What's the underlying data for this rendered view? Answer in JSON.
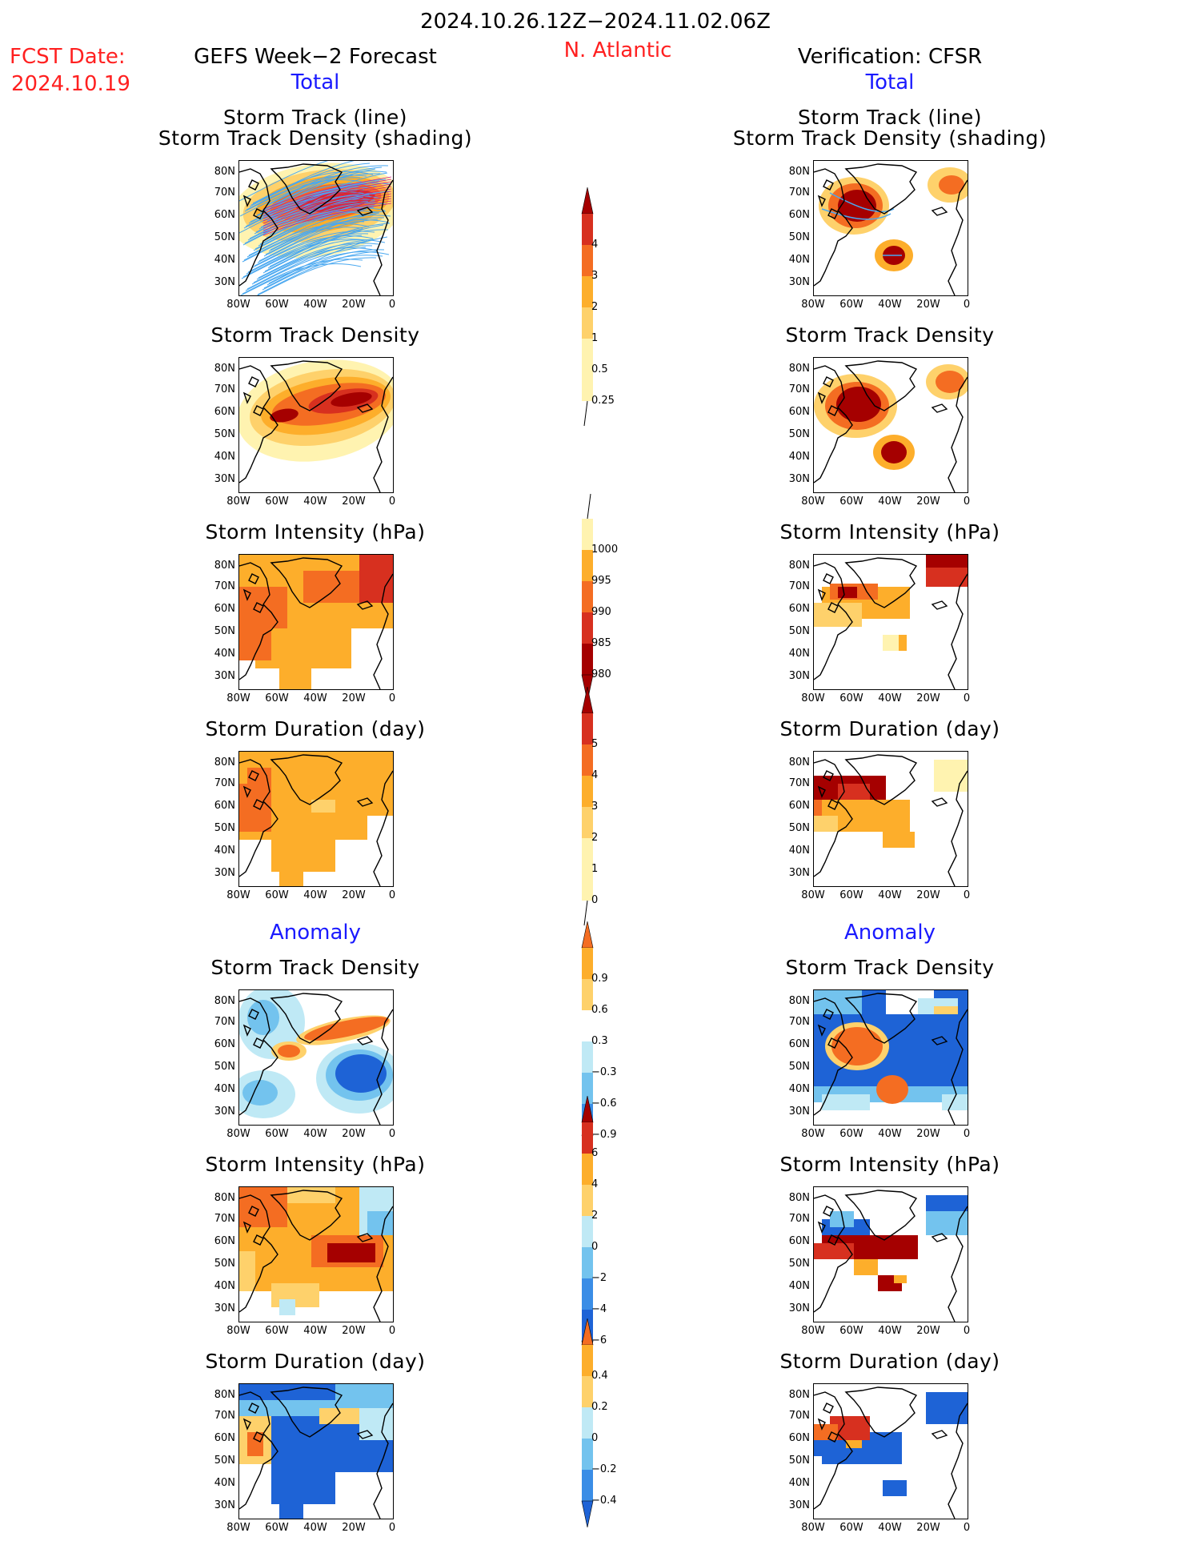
{
  "header": {
    "period": "2024.10.26.12Z−2024.11.02.06Z",
    "region": "N. Atlantic",
    "fcst_label": "FCST Date:",
    "fcst_date": "2024.10.19",
    "left_title": "GEFS Week−2 Forecast",
    "right_title": "Verification: CFSR",
    "total_label": "Total",
    "anomaly_label": "Anomaly"
  },
  "panel_titles": {
    "track_line": "Storm Track (line)",
    "track_shading": "Storm Track Density (shading)",
    "density": "Storm Track Density",
    "intensity": "Storm Intensity (hPa)",
    "duration": "Storm Duration (day)"
  },
  "axes": {
    "lat_labels": [
      "80N",
      "70N",
      "60N",
      "50N",
      "40N",
      "30N"
    ],
    "lon_labels": [
      "80W",
      "60W",
      "40W",
      "20W",
      "0"
    ]
  },
  "colorbars": {
    "density_total": [
      "4",
      "3",
      "2",
      "1",
      "0.5",
      "0.25"
    ],
    "intensity_total": [
      "1000",
      "995",
      "990",
      "985",
      "980"
    ],
    "duration_total": [
      "5",
      "4",
      "3",
      "2",
      "1",
      "0"
    ],
    "density_anom": [
      "0.9",
      "0.6",
      "0.3",
      "−0.3",
      "−0.6",
      "−0.9"
    ],
    "intensity_anom": [
      "6",
      "4",
      "2",
      "0",
      "−2",
      "−4",
      "−6"
    ],
    "duration_anom": [
      "0.4",
      "0.2",
      "0",
      "−0.2",
      "−0.4"
    ]
  },
  "colors": {
    "dark_red": "#a50000",
    "red": "#d7301f",
    "orange_red": "#f46d22",
    "orange": "#fdae2b",
    "light_orange": "#fed16b",
    "pale_yellow": "#fff3b0",
    "pale_blue": "#bfe9f5",
    "light_blue": "#73c3ee",
    "mid_blue": "#3a8de6",
    "blue": "#1e63d6",
    "track_blue": "#4aa8f0"
  }
}
